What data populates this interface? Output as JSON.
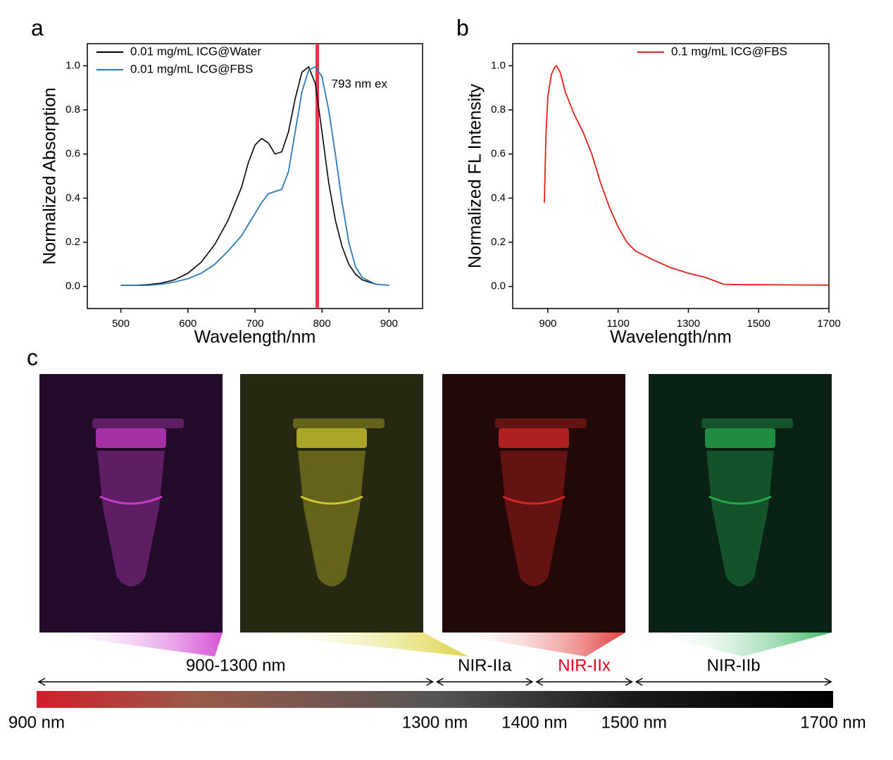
{
  "chart_data": [
    {
      "type": "line",
      "label": "a",
      "xlabel": "Wavelength/nm",
      "ylabel": "Normalized Absorption",
      "x": [
        500,
        520,
        540,
        560,
        580,
        600,
        620,
        640,
        660,
        680,
        690,
        700,
        710,
        720,
        730,
        740,
        750,
        760,
        770,
        780,
        790,
        800,
        810,
        820,
        830,
        840,
        850,
        860,
        880,
        900
      ],
      "series": [
        {
          "name": "0.01 mg/mL ICG@Water",
          "color": "#000000",
          "values": [
            0.005,
            0.005,
            0.008,
            0.015,
            0.03,
            0.06,
            0.11,
            0.19,
            0.3,
            0.45,
            0.56,
            0.64,
            0.67,
            0.65,
            0.6,
            0.61,
            0.7,
            0.85,
            0.97,
            0.995,
            0.92,
            0.7,
            0.47,
            0.3,
            0.18,
            0.1,
            0.055,
            0.03,
            0.01,
            0.005
          ]
        },
        {
          "name": "0.01 mg/mL ICG@FBS",
          "color": "#2a7ab8",
          "values": [
            0.005,
            0.005,
            0.005,
            0.01,
            0.02,
            0.035,
            0.06,
            0.1,
            0.16,
            0.23,
            0.28,
            0.33,
            0.38,
            0.42,
            0.43,
            0.44,
            0.52,
            0.7,
            0.88,
            0.98,
            0.995,
            0.95,
            0.8,
            0.6,
            0.38,
            0.2,
            0.09,
            0.04,
            0.01,
            0.005
          ]
        }
      ],
      "vline": {
        "x": 793,
        "color": "#e8344a",
        "label": "793 nm ex"
      },
      "xlim": [
        450,
        950
      ],
      "xticks": [
        500,
        600,
        700,
        800,
        900
      ],
      "ylim": [
        -0.1,
        1.1
      ],
      "yticks": [
        {
          "value": 0,
          "label": "0.0"
        },
        0.2,
        0.4,
        0.6,
        0.8,
        {
          "value": 1,
          "label": "1.0"
        }
      ],
      "legend": "upper left"
    },
    {
      "type": "line",
      "label": "b",
      "xlabel": "Wavelength/nm",
      "ylabel": "Normalized FL Intensity",
      "x": [
        890,
        895,
        900,
        910,
        920,
        925,
        935,
        950,
        975,
        1000,
        1025,
        1050,
        1075,
        1100,
        1125,
        1150,
        1200,
        1250,
        1300,
        1350,
        1400,
        1450,
        1500,
        1600,
        1700
      ],
      "series": [
        {
          "name": "0.1 mg/mL ICG@FBS",
          "color": "#e3201b",
          "values": [
            0.38,
            0.7,
            0.86,
            0.96,
            0.995,
            1.0,
            0.97,
            0.88,
            0.78,
            0.7,
            0.6,
            0.47,
            0.36,
            0.27,
            0.2,
            0.16,
            0.12,
            0.085,
            0.06,
            0.04,
            0.01,
            0.008,
            0.008,
            0.007,
            0.006
          ]
        }
      ],
      "xlim": [
        800,
        1700
      ],
      "xticks": [
        900,
        1100,
        1300,
        1500,
        1700
      ],
      "ylim": [
        -0.1,
        1.1
      ],
      "yticks": [
        {
          "value": 0,
          "label": "0.0"
        },
        0.2,
        0.4,
        0.6,
        0.8,
        {
          "value": 1,
          "label": "1.0"
        }
      ],
      "legend": "upper right"
    }
  ],
  "panel_c": {
    "label": "c",
    "images": [
      {
        "tint": "#d040d0",
        "background": "#230b2a"
      },
      {
        "tint": "#d8d030",
        "background": "#262812"
      },
      {
        "tint": "#e02828",
        "background": "#220808"
      },
      {
        "tint": "#28b050",
        "background": "#0a2214"
      }
    ],
    "bands": [
      {
        "label": "900-1300 nm",
        "from": 900,
        "to": 1300
      },
      {
        "label": "NIR-IIa",
        "from": 1300,
        "to": 1400
      },
      {
        "label": "NIR-IIx",
        "from": 1400,
        "to": 1500,
        "color": "#e3001b"
      },
      {
        "label": "NIR-IIb",
        "from": 1500,
        "to": 1700
      }
    ],
    "scale": {
      "lim": [
        900,
        1700
      ],
      "ticks": [
        {
          "value": 900,
          "label": "900 nm"
        },
        {
          "value": 1300,
          "label": "1300 nm"
        },
        {
          "value": 1400,
          "label": "1400 nm"
        },
        {
          "value": 1500,
          "label": "1500 nm"
        },
        {
          "value": 1700,
          "label": "1700 nm"
        }
      ]
    }
  }
}
